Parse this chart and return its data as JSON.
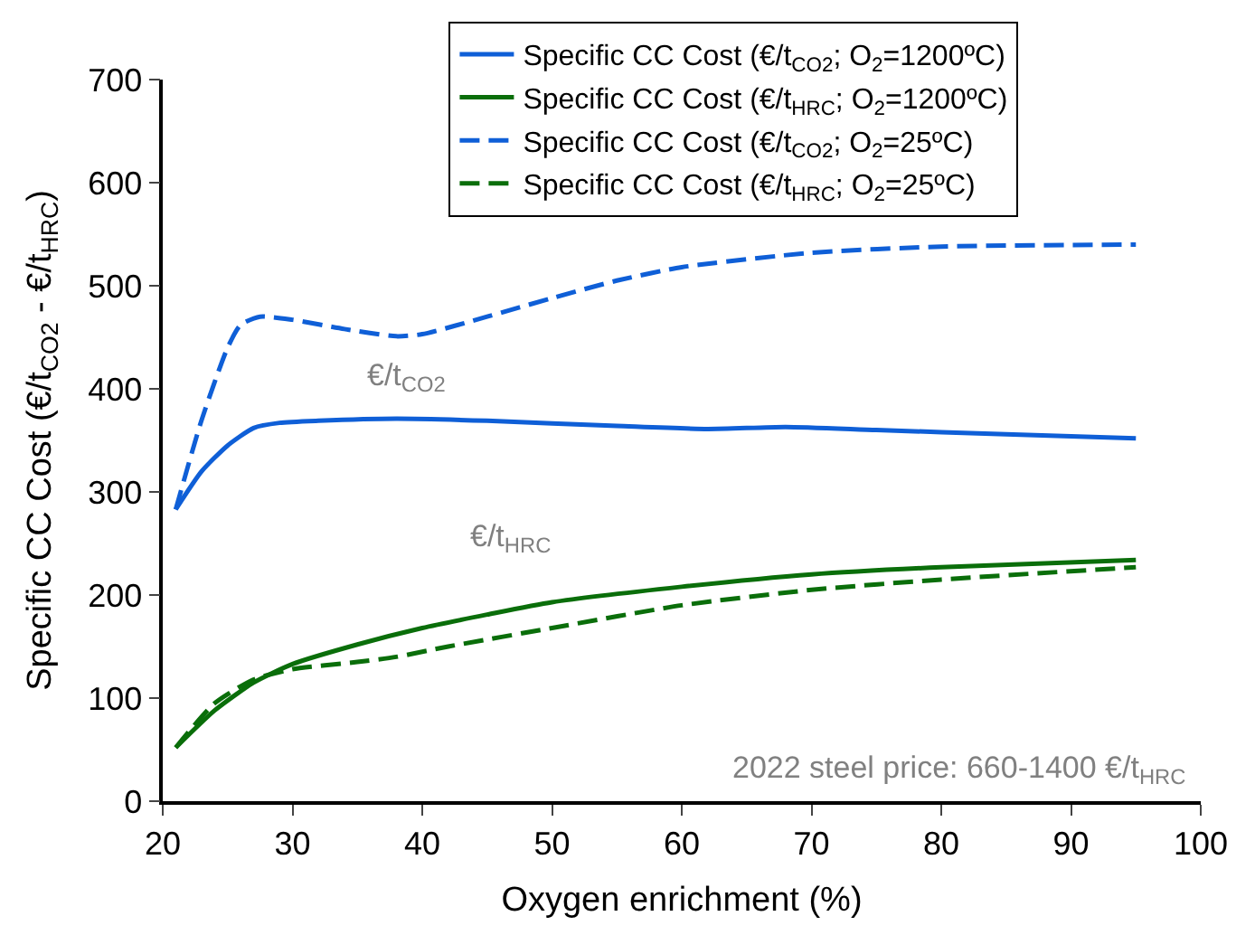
{
  "chart_data": {
    "type": "line",
    "xlabel": "Oxygen enrichment (%)",
    "ylabel": "Specific CC Cost (€/t$_{CO2}$ - €/t$_{HRC}$)",
    "xlim": [
      20,
      100
    ],
    "xticks": [
      20,
      30,
      40,
      50,
      60,
      70,
      80,
      90,
      100
    ],
    "ylim": [
      0,
      700
    ],
    "yticks": [
      0,
      100,
      200,
      300,
      400,
      500,
      600,
      700
    ],
    "legend": "top",
    "marker": "none",
    "series": [
      {
        "name": "Specific CC Cost (€/t$_{CO2}$; O$_{2}$=1200ºC)",
        "color": "#0f5fd7",
        "line_style": "solid",
        "x": [
          21,
          23,
          25,
          27,
          29,
          32,
          38,
          45,
          55,
          62,
          68,
          75,
          85,
          95
        ],
        "values": [
          283,
          320,
          345,
          362,
          367,
          369,
          371,
          369,
          364,
          361,
          363,
          360,
          356,
          352
        ]
      },
      {
        "name": "Specific CC Cost (€/t$_{HRC}$; O$_{2}$=1200ºC)",
        "color": "#0a6e0a",
        "line_style": "solid",
        "x": [
          21,
          24,
          27,
          30,
          35,
          40,
          45,
          50,
          60,
          70,
          80,
          95
        ],
        "values": [
          52,
          88,
          115,
          133,
          152,
          168,
          181,
          193,
          208,
          220,
          227,
          234
        ]
      },
      {
        "name": "Specific CC Cost (€/t$_{CO2}$; O$_{2}$=25ºC)",
        "color": "#0f5fd7",
        "line_style": "dashed",
        "x": [
          21,
          23,
          25,
          26,
          27.5,
          30,
          34,
          38,
          40,
          45,
          50,
          55,
          60,
          70,
          80,
          95
        ],
        "values": [
          283,
          370,
          440,
          462,
          470,
          467,
          458,
          451,
          453,
          470,
          488,
          505,
          518,
          532,
          538,
          540
        ]
      },
      {
        "name": "Specific CC Cost (€/t$_{HRC}$; O$_{2}$=25ºC)",
        "color": "#0a6e0a",
        "line_style": "dashed",
        "x": [
          21,
          24,
          27,
          30,
          35,
          38,
          42,
          50,
          60,
          70,
          80,
          95
        ],
        "values": [
          52,
          95,
          118,
          128,
          135,
          140,
          150,
          168,
          190,
          205,
          215,
          227
        ]
      }
    ],
    "annotations": [
      "€/t$_{CO2}$",
      "€/t$_{HRC}$",
      "2022 steel price: 660-1400 €/t$_{HRC}$"
    ]
  }
}
